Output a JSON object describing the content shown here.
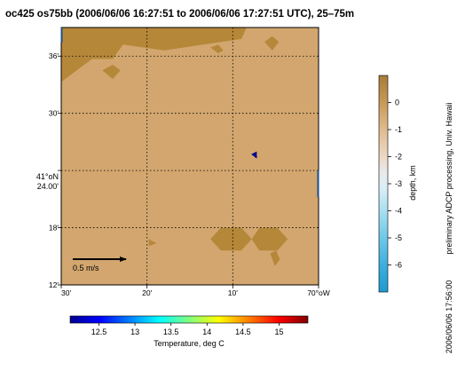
{
  "chart_data": {
    "type": "heatmap",
    "title": "oc425 os75bb (2006/06/06 16:27:51 to 2006/06/06 17:27:51 UTC), 25–75m",
    "map": {
      "x_range": [
        -70.5,
        -70.0
      ],
      "y_range": [
        40.2,
        40.65
      ],
      "x_ticks": [
        {
          "v": -70.5,
          "label": "30'"
        },
        {
          "v": -70.3333,
          "label": "20'"
        },
        {
          "v": -70.1667,
          "label": "10'"
        },
        {
          "v": -70.0,
          "label": "70°oW"
        }
      ],
      "y_ticks": [
        {
          "v": 40.6,
          "label": "36'"
        },
        {
          "v": 40.5,
          "label": "30'"
        },
        {
          "v": 40.3,
          "label": "18'"
        },
        {
          "v": 40.2,
          "label": "12'"
        }
      ],
      "y_center_label": [
        "41°oN",
        "24.00'"
      ],
      "y_center_value": 40.4,
      "grid": true,
      "grid_style": "dotted",
      "land_color": "#d2a66e",
      "shallow_color": "#b58739",
      "shallow_regions": [
        [
          [
            -70.5,
            40.65
          ],
          [
            -70.5,
            40.555
          ],
          [
            -70.44,
            40.595
          ],
          [
            -70.4,
            40.595
          ],
          [
            -70.38,
            40.62
          ],
          [
            -70.3,
            40.61
          ],
          [
            -70.15,
            40.63
          ],
          [
            -70.14,
            40.65
          ]
        ],
        [
          [
            -70.42,
            40.575
          ],
          [
            -70.4,
            40.585
          ],
          [
            -70.385,
            40.575
          ],
          [
            -70.4,
            40.56
          ]
        ],
        [
          [
            -70.21,
            40.615
          ],
          [
            -70.195,
            40.62
          ],
          [
            -70.185,
            40.61
          ],
          [
            -70.195,
            40.605
          ]
        ],
        [
          [
            -70.105,
            40.625
          ],
          [
            -70.09,
            40.635
          ],
          [
            -70.077,
            40.625
          ],
          [
            -70.09,
            40.61
          ]
        ],
        [
          [
            -70.21,
            40.28
          ],
          [
            -70.19,
            40.26
          ],
          [
            -70.15,
            40.26
          ],
          [
            -70.13,
            40.28
          ],
          [
            -70.15,
            40.3
          ],
          [
            -70.19,
            40.3
          ]
        ],
        [
          [
            -70.13,
            40.28
          ],
          [
            -70.115,
            40.3
          ],
          [
            -70.08,
            40.3
          ],
          [
            -70.06,
            40.28
          ],
          [
            -70.08,
            40.26
          ],
          [
            -70.115,
            40.26
          ]
        ],
        [
          [
            -70.094,
            40.255
          ],
          [
            -70.083,
            40.26
          ],
          [
            -70.075,
            40.245
          ],
          [
            -70.085,
            40.233
          ]
        ],
        [
          [
            -70.33,
            40.28
          ],
          [
            -70.315,
            40.273
          ],
          [
            -70.33,
            40.268
          ]
        ]
      ],
      "vectors": [
        {
          "lon": -70.125,
          "lat": 40.43,
          "u": 0.02,
          "v": -0.04
        }
      ],
      "scale_arrow": {
        "label": "0.5 m/s",
        "speed": 0.5
      }
    },
    "depth_colorbar": {
      "label": "depth, km",
      "range": [
        -7,
        1
      ],
      "ticks": [
        0,
        -1,
        -2,
        -3,
        -4,
        -5,
        -6
      ],
      "colors": [
        {
          "v": 1,
          "c": "#a67c39"
        },
        {
          "v": 0,
          "c": "#c89a58"
        },
        {
          "v": -1,
          "c": "#e0bb8f"
        },
        {
          "v": -2,
          "c": "#ecd8c6"
        },
        {
          "v": -2.6,
          "c": "#eaeaea"
        },
        {
          "v": -3.2,
          "c": "#d8eef6"
        },
        {
          "v": -4,
          "c": "#a9dff0"
        },
        {
          "v": -5,
          "c": "#6ec8e8"
        },
        {
          "v": -6,
          "c": "#3faede"
        },
        {
          "v": -7,
          "c": "#1e9bd0"
        }
      ]
    },
    "temp_colorbar": {
      "label": "Temperature, deg C",
      "range": [
        12.1,
        15.4
      ],
      "ticks": [
        12.5,
        13,
        13.5,
        14,
        14.5,
        15
      ],
      "colormap": [
        "#00008f",
        "#0000ff",
        "#007fff",
        "#00ffff",
        "#7fff7f",
        "#ffff00",
        "#ff7f00",
        "#ff0000",
        "#800000"
      ],
      "vector_temperature": 12.3
    },
    "side_text": {
      "credit": "preliminary ADCP processing,  Univ. Hawaii",
      "timestamp": "2006/06/06 17:56:00"
    }
  }
}
